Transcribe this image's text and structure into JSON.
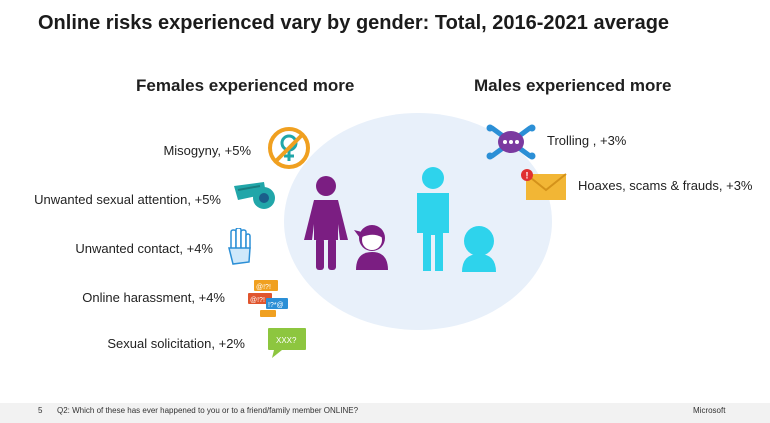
{
  "title": "Online risks experienced vary by gender: Total, 2016-2021 average",
  "females": {
    "heading": "Females experienced more",
    "items": [
      {
        "label": "Misogyny, +5%",
        "icon": "venus-no-icon"
      },
      {
        "label": "Unwanted sexual attention, +5%",
        "icon": "whistle-icon"
      },
      {
        "label": "Unwanted contact, +4%",
        "icon": "hand-stop-icon"
      },
      {
        "label": "Online harassment, +4%",
        "icon": "chat-bubbles-icon"
      },
      {
        "label": "Sexual solicitation, +2%",
        "icon": "xxx-bubble-icon"
      }
    ]
  },
  "males": {
    "heading": "Males experienced more",
    "items": [
      {
        "label": "Trolling , +3%",
        "icon": "skull-crossbones-icon"
      },
      {
        "label": "Hoaxes, scams & frauds, +3%",
        "icon": "envelope-alert-icon"
      }
    ]
  },
  "icon_texts": {
    "xxx": "XXX?",
    "harass1": "@!?!",
    "harass2": "@!?!",
    "harass3": "!?*@",
    "alert": "!"
  },
  "colors": {
    "female": "#7b1e82",
    "male": "#2ed3ec",
    "ellipse": "#e8f0fa",
    "orange": "#f0a020",
    "teal": "#21a6a9",
    "yellow": "#f2b635",
    "green": "#8dc63f"
  },
  "footer": {
    "page_number": "5",
    "question": "Q2: Which of these has ever happened to you or to a friend/family member ONLINE?",
    "brand": "Microsoft"
  }
}
